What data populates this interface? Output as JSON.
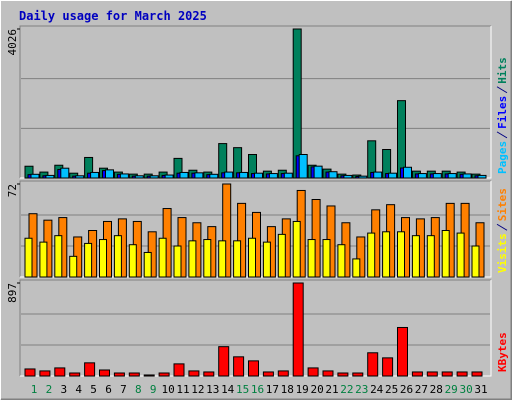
{
  "chart_data": [
    {
      "type": "bar",
      "title": "Daily usage for March 2025",
      "ylim": [
        0,
        4026
      ],
      "yticks": [
        4026
      ],
      "series": [
        {
          "name": "Hits",
          "color": "#00805c",
          "values": [
            318,
            160,
            345,
            130,
            555,
            265,
            160,
            105,
            105,
            160,
            530,
            210,
            160,
            930,
            820,
            635,
            185,
            210,
            4026,
            345,
            240,
            105,
            80,
            1005,
            770,
            2090,
            185,
            185,
            185,
            160,
            105
          ]
        },
        {
          "name": "Files",
          "color": "#0000ff",
          "values": [
            90,
            60,
            230,
            50,
            130,
            200,
            100,
            50,
            50,
            70,
            130,
            130,
            90,
            140,
            140,
            120,
            110,
            120,
            600,
            300,
            160,
            60,
            40,
            150,
            120,
            270,
            110,
            110,
            110,
            100,
            60
          ]
        },
        {
          "name": "Pages",
          "color": "#00c0ff",
          "values": [
            100,
            70,
            265,
            60,
            150,
            220,
            110,
            60,
            60,
            80,
            150,
            140,
            100,
            160,
            150,
            130,
            120,
            130,
            635,
            320,
            170,
            70,
            50,
            160,
            130,
            290,
            120,
            120,
            120,
            110,
            70
          ]
        }
      ]
    },
    {
      "type": "bar",
      "ylim": [
        0,
        72
      ],
      "yticks": [
        72
      ],
      "series": [
        {
          "name": "Sites",
          "color": "#ff8000",
          "values": [
            49,
            44,
            46,
            31,
            36,
            43,
            45,
            43,
            35,
            53,
            46,
            42,
            39,
            72,
            57,
            50,
            39,
            45,
            67,
            60,
            55,
            42,
            31,
            52,
            56,
            46,
            45,
            46,
            57,
            57,
            42
          ]
        },
        {
          "name": "Visits",
          "color": "#ffff00",
          "values": [
            30,
            27,
            32,
            16,
            26,
            29,
            32,
            25,
            19,
            30,
            24,
            28,
            29,
            28,
            28,
            30,
            27,
            33,
            43,
            29,
            29,
            25,
            14,
            34,
            35,
            35,
            32,
            32,
            36,
            34,
            24
          ]
        }
      ]
    },
    {
      "type": "bar",
      "ylim": [
        0,
        897
      ],
      "yticks": [
        897
      ],
      "categories": [
        1,
        2,
        3,
        4,
        5,
        6,
        7,
        8,
        9,
        10,
        11,
        12,
        13,
        14,
        15,
        16,
        17,
        18,
        19,
        20,
        21,
        22,
        23,
        24,
        25,
        26,
        27,
        28,
        29,
        30,
        31
      ],
      "category_colors": [
        "#008040",
        "#008040",
        "#000000",
        "#000000",
        "#000000",
        "#000000",
        "#000000",
        "#008040",
        "#008040",
        "#000000",
        "#000000",
        "#000000",
        "#000000",
        "#000000",
        "#008040",
        "#008040",
        "#000000",
        "#000000",
        "#000000",
        "#000000",
        "#000000",
        "#008040",
        "#008040",
        "#000000",
        "#000000",
        "#000000",
        "#000000",
        "#000000",
        "#008040",
        "#008040",
        "#000000"
      ],
      "series": [
        {
          "name": "KBytes",
          "color": "#ff0000",
          "values": [
            68,
            49,
            78,
            29,
            127,
            58,
            29,
            29,
            10,
            29,
            117,
            49,
            39,
            283,
            185,
            146,
            39,
            49,
            897,
            78,
            49,
            29,
            29,
            224,
            175,
            468,
            39,
            39,
            39,
            39,
            39
          ]
        }
      ]
    }
  ]
}
